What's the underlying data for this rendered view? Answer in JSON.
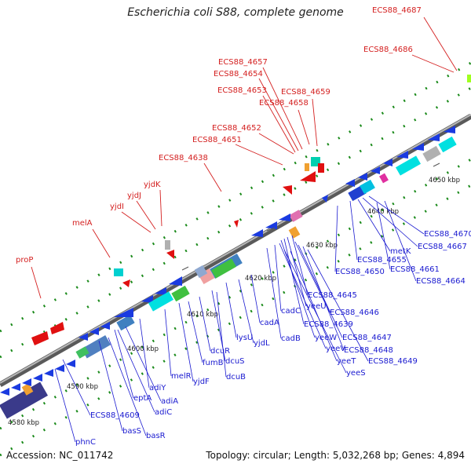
{
  "title": "Escherichia coli S88, complete genome",
  "footer": {
    "accession": "Accession: NC_011742",
    "summary": "Topology: circular; Length: 5,032,268 bp; Genes: 4,894"
  },
  "ticks": [
    "4580 kbp",
    "4590 kbp",
    "4600 kbp",
    "4610 kbp",
    "4620 kbp",
    "4630 kbp",
    "4640 kbp",
    "4650 kbp"
  ],
  "red_labels": [
    "ECS88_4687",
    "ECS88_4686",
    "ECS88_4657",
    "ECS88_4654",
    "ECS88_4653",
    "ECS88_4659",
    "ECS88_4658",
    "ECS88_4652",
    "ECS88_4651",
    "ECS88_4638",
    "yjdK",
    "yjdJ",
    "yjdI",
    "melA",
    "proP"
  ],
  "blue_labels": [
    "ECS88_4670",
    "ECS88_4667",
    "metK",
    "ECS88_4655",
    "ECS88_4661",
    "ECS88_4650",
    "ECS88_4664",
    "ECS88_4645",
    "yeeU",
    "ECS88_4646",
    "ECS88_4639",
    "yeeW",
    "ECS88_4647",
    "cadC",
    "yeeV",
    "ECS88_4648",
    "cadA",
    "cadB",
    "yeeT",
    "ECS88_4649",
    "lysU",
    "yeeS",
    "yjdL",
    "dcuR",
    "dcuS",
    "fumB",
    "dcuB",
    "melR",
    "yjdF",
    "adiY",
    "adiA",
    "eptA",
    "adiC",
    "ECS88_4609",
    "basS",
    "basR",
    "phnC"
  ],
  "colors": {
    "red_label": "#d42020",
    "blue_label": "#1a1ad0",
    "backbone": "#888888"
  }
}
